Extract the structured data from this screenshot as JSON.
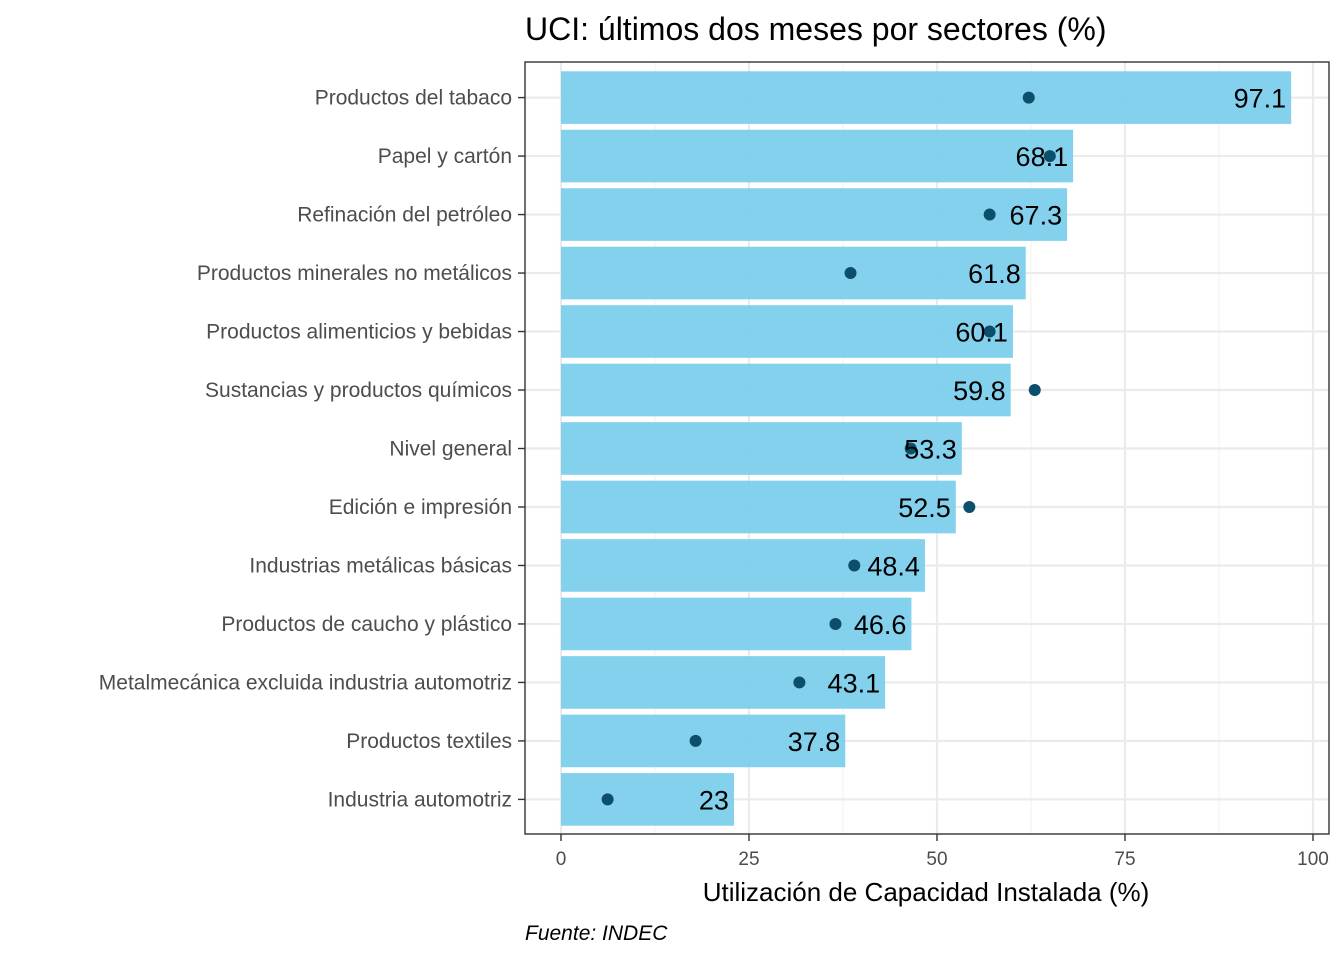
{
  "chart_data": {
    "type": "bar",
    "orientation": "horizontal",
    "title": "UCI: últimos dos meses por sectores (%)",
    "xlabel": "Utilización de Capacidad Instalada (%)",
    "ylabel": "",
    "caption": "Fuente: INDEC",
    "xlim": [
      0,
      100
    ],
    "x_ticks": [
      0,
      25,
      50,
      75,
      100
    ],
    "grid": true,
    "legend": "none",
    "categories": [
      "Productos del tabaco",
      "Papel y cartón",
      "Refinación del petróleo",
      "Productos minerales no metálicos",
      "Productos alimenticios y bebidas",
      "Sustancias y productos químicos",
      "Nivel general",
      "Edición e impresión",
      "Industrias metálicas básicas",
      "Productos de caucho y plástico",
      "Metalmecánica excluida industria automotriz",
      "Productos textiles",
      "Industria automotriz"
    ],
    "series": [
      {
        "type": "bar",
        "values": [
          97.1,
          68.1,
          67.3,
          61.8,
          60.1,
          59.8,
          53.3,
          52.5,
          48.4,
          46.6,
          43.1,
          37.8,
          23
        ],
        "labels": [
          "97.1",
          "68.1",
          "67.3",
          "61.8",
          "60.1",
          "59.8",
          "53.3",
          "52.5",
          "48.4",
          "46.6",
          "43.1",
          "37.8",
          "23"
        ],
        "color": "#7dcfec"
      },
      {
        "type": "point",
        "values": [
          62.2,
          65.0,
          57.0,
          38.5,
          57.0,
          63.0,
          46.5,
          54.3,
          39.0,
          36.5,
          31.7,
          17.9,
          6.2
        ],
        "color": "#0b4f6c"
      }
    ]
  }
}
